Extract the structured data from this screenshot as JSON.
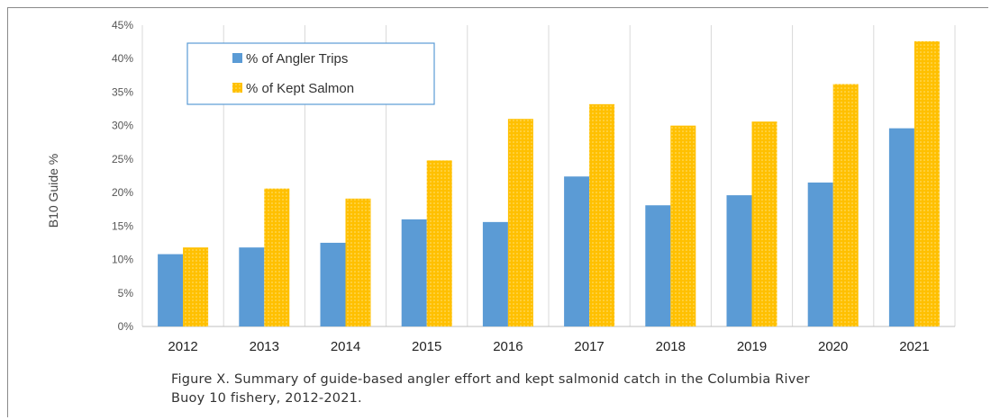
{
  "chart_data": {
    "type": "bar",
    "ylabel": "B10 Guide %",
    "xlabel": "",
    "ylim": [
      0,
      45
    ],
    "ytick_step": 5,
    "ytick_suffix": "%",
    "grid": "vertical",
    "legend_position": "top-left",
    "categories": [
      "2012",
      "2013",
      "2014",
      "2015",
      "2016",
      "2017",
      "2018",
      "2019",
      "2020",
      "2021"
    ],
    "series": [
      {
        "name": "% of Angler Trips",
        "color": "#5b9bd5",
        "values": [
          10.8,
          11.8,
          12.5,
          16.0,
          15.6,
          22.4,
          18.1,
          19.6,
          21.5,
          29.6
        ]
      },
      {
        "name": "% of Kept Salmon",
        "color": "#ffc000",
        "values": [
          11.8,
          20.6,
          19.1,
          24.8,
          31.0,
          33.2,
          30.0,
          30.6,
          36.2,
          42.6
        ]
      }
    ]
  },
  "caption": {
    "line1": "Figure X.  Summary of guide-based angler effort and kept salmonid catch in the Columbia River",
    "line2": "Buoy 10 fishery, 2012-2021."
  }
}
